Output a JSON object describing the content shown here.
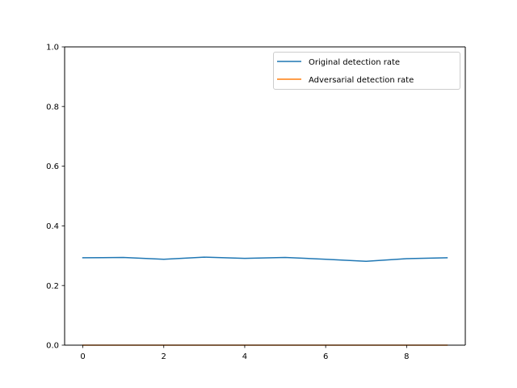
{
  "chart_data": {
    "type": "line",
    "title": "",
    "xlabel": "",
    "ylabel": "",
    "x": [
      0,
      1,
      2,
      3,
      4,
      5,
      6,
      7,
      8,
      9
    ],
    "xlim": [
      -0.45,
      9.45
    ],
    "ylim": [
      0,
      1
    ],
    "xticks": [
      0,
      2,
      4,
      6,
      8
    ],
    "xtick_labels": [
      "0",
      "2",
      "4",
      "6",
      "8"
    ],
    "yticks": [
      0,
      0.2,
      0.4,
      0.6,
      0.8,
      1.0
    ],
    "ytick_labels": [
      "0.0",
      "0.2",
      "0.4",
      "0.6",
      "0.8",
      "1.0"
    ],
    "grid": false,
    "legend_position": "top-right",
    "series": [
      {
        "name": "Original detection rate",
        "color": "#1f77b4",
        "values": [
          0.293,
          0.294,
          0.288,
          0.295,
          0.291,
          0.294,
          0.288,
          0.281,
          0.29,
          0.293
        ]
      },
      {
        "name": "Adversarial detection rate",
        "color": "#ff7f0e",
        "values": [
          0,
          0,
          0,
          0,
          0,
          0,
          0,
          0,
          0,
          0
        ]
      }
    ]
  }
}
